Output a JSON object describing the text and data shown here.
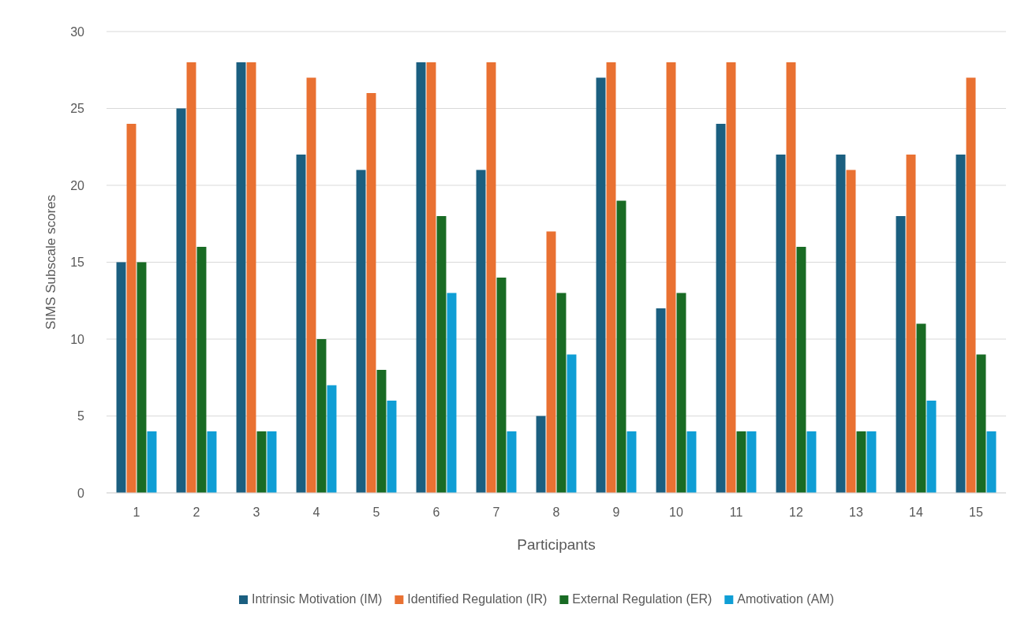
{
  "chart_data": {
    "type": "bar",
    "xlabel": "Participants",
    "ylabel": "SIMS Subscale scores",
    "categories": [
      "1",
      "2",
      "3",
      "4",
      "5",
      "6",
      "7",
      "8",
      "9",
      "10",
      "11",
      "12",
      "13",
      "14",
      "15"
    ],
    "series": [
      {
        "name": "Intrinsic Motivation (IM)",
        "color": "#1b5f80",
        "values": [
          15,
          25,
          28,
          22,
          21,
          28,
          21,
          5,
          27,
          12,
          24,
          22,
          22,
          18,
          22
        ]
      },
      {
        "name": "Identified Regulation (IR)",
        "color": "#e97132",
        "values": [
          24,
          28,
          28,
          27,
          26,
          28,
          28,
          17,
          28,
          28,
          28,
          28,
          21,
          22,
          27
        ]
      },
      {
        "name": "External Regulation (ER)",
        "color": "#196b24",
        "values": [
          15,
          16,
          4,
          10,
          8,
          18,
          14,
          13,
          19,
          13,
          4,
          16,
          4,
          11,
          9
        ]
      },
      {
        "name": "Amotivation (AM)",
        "color": "#0f9ed5",
        "values": [
          4,
          4,
          4,
          7,
          6,
          13,
          4,
          9,
          4,
          4,
          4,
          4,
          4,
          6,
          4
        ]
      }
    ],
    "ylim": [
      0,
      30
    ],
    "yticks": [
      0,
      5,
      10,
      15,
      20,
      25,
      30
    ],
    "grid": "y",
    "legend": "bottom"
  }
}
